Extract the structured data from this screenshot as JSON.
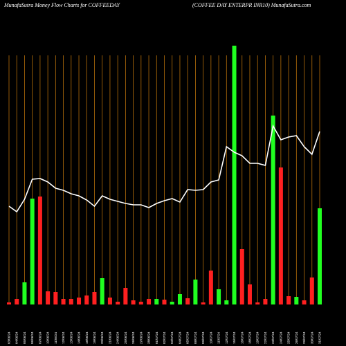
{
  "chart_data": {
    "type": "bar",
    "title": "MunafaSutra  Money Flow  Charts for COFFEEDAY",
    "subtitle": "(COFFEE DAY ENTERPR INR10) MunafaSutra.com",
    "categories": [
      "03/06/24",
      "04/06/24",
      "05/06/24",
      "06/06/24",
      "07/06/24",
      "10/06/24",
      "11/06/24",
      "12/06/24",
      "13/06/24",
      "14/06/24",
      "18/06/24",
      "19/06/24",
      "20/06/24",
      "21/06/24",
      "24/06/24",
      "25/06/24",
      "26/06/24",
      "27/06/24",
      "28/06/24",
      "01/07/24",
      "02/07/24",
      "03/07/24",
      "04/07/24",
      "05/07/24",
      "08/07/24",
      "09/07/24",
      "10/07/24",
      "11/07/24",
      "12/07/24",
      "15/07/24",
      "16/07/24",
      "18/07/24",
      "19/07/24",
      "22/07/24",
      "23/07/24",
      "24/07/24",
      "25/07/24",
      "26/07/24",
      "29/07/24",
      "30/07/24",
      "31/07/24"
    ],
    "values": [
      3,
      8,
      32,
      153,
      156,
      19,
      18,
      8,
      8,
      10,
      13,
      18,
      38,
      10,
      4,
      24,
      6,
      4,
      8,
      8,
      7,
      4,
      15,
      9,
      36,
      3,
      49,
      22,
      6,
      374,
      80,
      29,
      3,
      8,
      273,
      198,
      12,
      11,
      6,
      39,
      139
    ],
    "bar_colors": [
      "#ff2020",
      "#ff2020",
      "#20ff20",
      "#20ff20",
      "#ff2020",
      "#ff2020",
      "#ff2020",
      "#ff2020",
      "#ff2020",
      "#ff2020",
      "#ff2020",
      "#ff2020",
      "#20ff20",
      "#ff2020",
      "#ff2020",
      "#ff2020",
      "#ff2020",
      "#ff2020",
      "#ff2020",
      "#20ff20",
      "#ff2020",
      "#20ff20",
      "#20ff20",
      "#ff2020",
      "#20ff20",
      "#ff2020",
      "#ff2020",
      "#20ff20",
      "#20ff20",
      "#20ff20",
      "#ff2020",
      "#ff2020",
      "#ff2020",
      "#ff2020",
      "#20ff20",
      "#ff2020",
      "#ff2020",
      "#20ff20",
      "#ff2020",
      "#ff2020",
      "#20ff20"
    ],
    "line_values": [
      142,
      134,
      152,
      181,
      182,
      177,
      168,
      165,
      160,
      157,
      151,
      142,
      157,
      152,
      149,
      146,
      144,
      144,
      140,
      146,
      150,
      153,
      148,
      166,
      165,
      166,
      177,
      180,
      228,
      220,
      215,
      204,
      204,
      201,
      258,
      238,
      242,
      244,
      228,
      217,
      250
    ],
    "line_color": "#ffffff",
    "grid_color": "#b8700a",
    "ylim": [
      0,
      375
    ]
  }
}
